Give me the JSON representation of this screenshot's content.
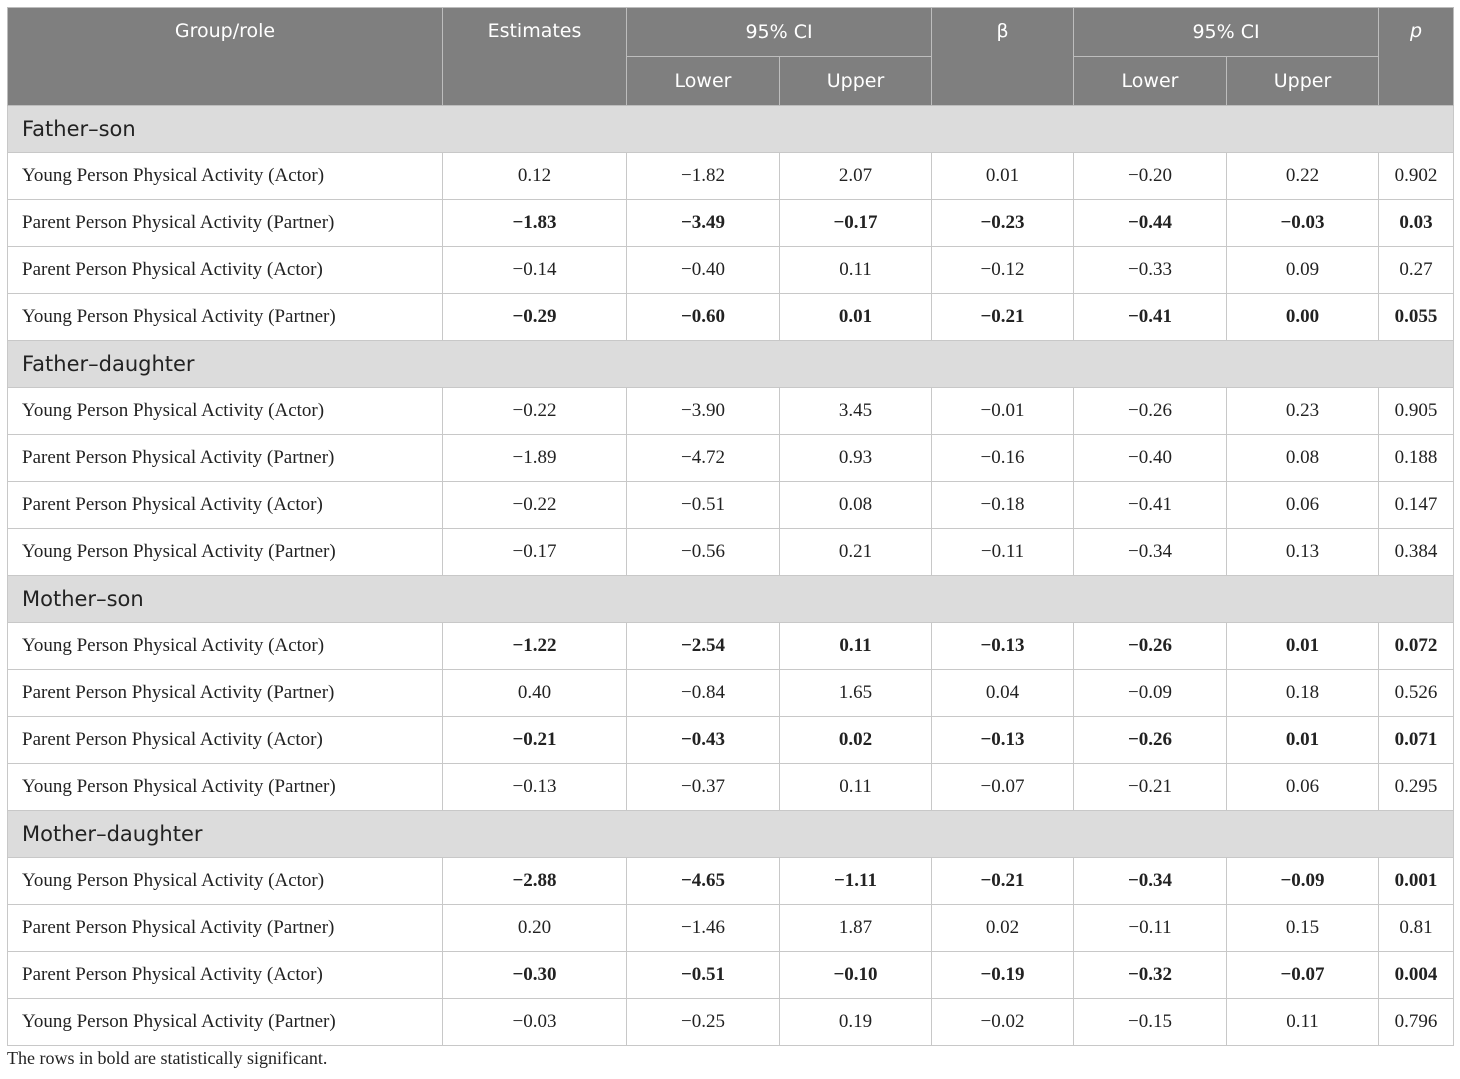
{
  "table": {
    "headers": {
      "group_role": "Group/role",
      "estimates": "Estimates",
      "ci1": "95% CI",
      "beta": "β",
      "ci2": "95% CI",
      "p": "p",
      "lower1": "Lower",
      "upper1": "Upper",
      "lower2": "Lower",
      "upper2": "Upper"
    },
    "groups": [
      {
        "name": "Father–son",
        "rows": [
          {
            "label": "Young Person Physical Activity (Actor)",
            "bold": false,
            "values": [
              "0.12",
              "−1.82",
              "2.07",
              "0.01",
              "−0.20",
              "0.22",
              "0.902"
            ]
          },
          {
            "label": "Parent Person Physical Activity (Partner)",
            "bold": true,
            "values": [
              "−1.83",
              "−3.49",
              "−0.17",
              "−0.23",
              "−0.44",
              "−0.03",
              "0.03"
            ]
          },
          {
            "label": "Parent Person Physical Activity (Actor)",
            "bold": false,
            "values": [
              "−0.14",
              "−0.40",
              "0.11",
              "−0.12",
              "−0.33",
              "0.09",
              "0.27"
            ]
          },
          {
            "label": "Young Person Physical Activity (Partner)",
            "bold": true,
            "values": [
              "−0.29",
              "−0.60",
              "0.01",
              "−0.21",
              "−0.41",
              "0.00",
              "0.055"
            ]
          }
        ]
      },
      {
        "name": "Father–daughter",
        "rows": [
          {
            "label": "Young Person Physical Activity (Actor)",
            "bold": false,
            "values": [
              "−0.22",
              "−3.90",
              "3.45",
              "−0.01",
              "−0.26",
              "0.23",
              "0.905"
            ]
          },
          {
            "label": "Parent Person Physical Activity (Partner)",
            "bold": false,
            "values": [
              "−1.89",
              "−4.72",
              "0.93",
              "−0.16",
              "−0.40",
              "0.08",
              "0.188"
            ]
          },
          {
            "label": "Parent Person Physical Activity (Actor)",
            "bold": false,
            "values": [
              "−0.22",
              "−0.51",
              "0.08",
              "−0.18",
              "−0.41",
              "0.06",
              "0.147"
            ]
          },
          {
            "label": "Young Person Physical Activity (Partner)",
            "bold": false,
            "values": [
              "−0.17",
              "−0.56",
              "0.21",
              "−0.11",
              "−0.34",
              "0.13",
              "0.384"
            ]
          }
        ]
      },
      {
        "name": "Mother–son",
        "rows": [
          {
            "label": "Young Person Physical Activity (Actor)",
            "bold": true,
            "values": [
              "−1.22",
              "−2.54",
              "0.11",
              "−0.13",
              "−0.26",
              "0.01",
              "0.072"
            ]
          },
          {
            "label": "Parent Person Physical Activity (Partner)",
            "bold": false,
            "values": [
              "0.40",
              "−0.84",
              "1.65",
              "0.04",
              "−0.09",
              "0.18",
              "0.526"
            ]
          },
          {
            "label": "Parent Person Physical Activity (Actor)",
            "bold": true,
            "values": [
              "−0.21",
              "−0.43",
              "0.02",
              "−0.13",
              "−0.26",
              "0.01",
              "0.071"
            ]
          },
          {
            "label": "Young Person Physical Activity (Partner)",
            "bold": false,
            "values": [
              "−0.13",
              "−0.37",
              "0.11",
              "−0.07",
              "−0.21",
              "0.06",
              "0.295"
            ]
          }
        ]
      },
      {
        "name": "Mother–daughter",
        "rows": [
          {
            "label": "Young Person Physical Activity (Actor)",
            "bold": true,
            "values": [
              "−2.88",
              "−4.65",
              "−1.11",
              "−0.21",
              "−0.34",
              "−0.09",
              "0.001"
            ]
          },
          {
            "label": "Parent Person Physical Activity (Partner)",
            "bold": false,
            "values": [
              "0.20",
              "−1.46",
              "1.87",
              "0.02",
              "−0.11",
              "0.15",
              "0.81"
            ]
          },
          {
            "label": "Parent Person Physical Activity (Actor)",
            "bold": true,
            "values": [
              "−0.30",
              "−0.51",
              "−0.10",
              "−0.19",
              "−0.32",
              "−0.07",
              "0.004"
            ]
          },
          {
            "label": "Young Person Physical Activity (Partner)",
            "bold": false,
            "values": [
              "−0.03",
              "−0.25",
              "0.19",
              "−0.02",
              "−0.15",
              "0.11",
              "0.796"
            ]
          }
        ]
      }
    ]
  },
  "footnote": "The rows in bold are statistically significant."
}
